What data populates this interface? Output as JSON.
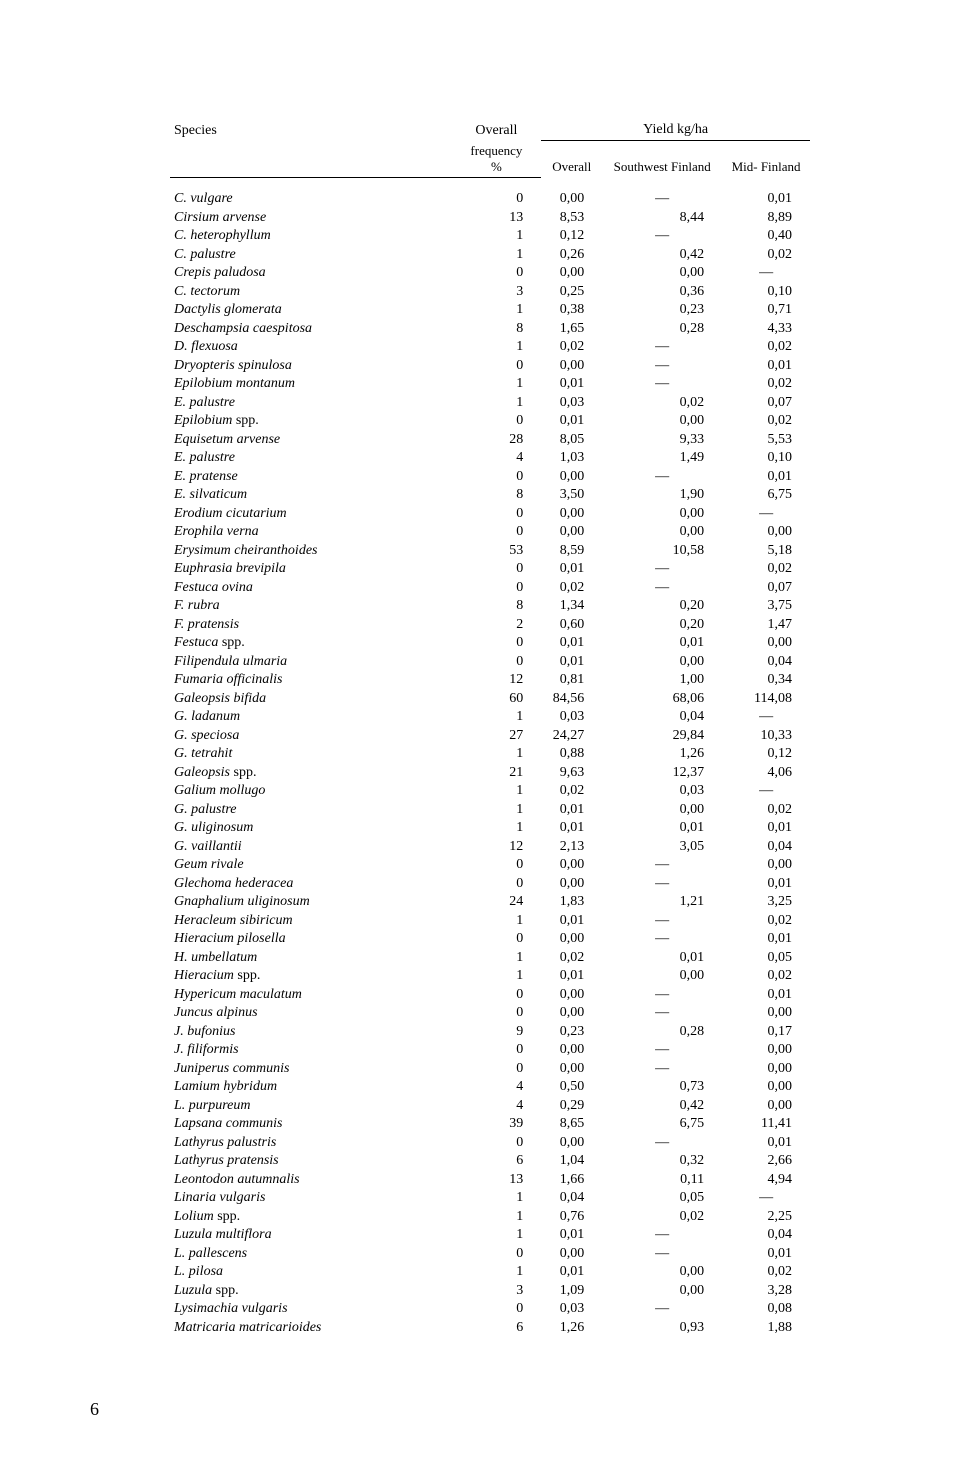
{
  "headers": {
    "species": "Species",
    "overall_freq": "Overall",
    "frequency": "frequency",
    "freq_unit": "%",
    "yield": "Yield kg/ha",
    "overall": "Overall",
    "southwest": "Southwest Finland",
    "mid": "Mid- Finland"
  },
  "page_number": "6",
  "rows": [
    {
      "sp": "C. vulgare",
      "freq": "0",
      "ov": "0,00",
      "sw": "—",
      "mid": "0,01"
    },
    {
      "sp": "Cirsium arvense",
      "freq": "13",
      "ov": "8,53",
      "sw": "8,44",
      "mid": "8,89"
    },
    {
      "sp": "C. heterophyllum",
      "freq": "1",
      "ov": "0,12",
      "sw": "—",
      "mid": "0,40"
    },
    {
      "sp": "C. palustre",
      "freq": "1",
      "ov": "0,26",
      "sw": "0,42",
      "mid": "0,02"
    },
    {
      "sp": "Crepis paludosa",
      "freq": "0",
      "ov": "0,00",
      "sw": "0,00",
      "mid": "—"
    },
    {
      "sp": "C. tectorum",
      "freq": "3",
      "ov": "0,25",
      "sw": "0,36",
      "mid": "0,10"
    },
    {
      "sp": "Dactylis glomerata",
      "freq": "1",
      "ov": "0,38",
      "sw": "0,23",
      "mid": "0,71"
    },
    {
      "sp": "Deschampsia caespitosa",
      "freq": "8",
      "ov": "1,65",
      "sw": "0,28",
      "mid": "4,33"
    },
    {
      "sp": "D. flexuosa",
      "freq": "1",
      "ov": "0,02",
      "sw": "—",
      "mid": "0,02"
    },
    {
      "sp": "Dryopteris spinulosa",
      "freq": "0",
      "ov": "0,00",
      "sw": "—",
      "mid": "0,01"
    },
    {
      "sp": "Epilobium montanum",
      "freq": "1",
      "ov": "0,01",
      "sw": "—",
      "mid": "0,02"
    },
    {
      "sp": "E. palustre",
      "freq": "1",
      "ov": "0,03",
      "sw": "0,02",
      "mid": "0,07"
    },
    {
      "sp": "Epilobium",
      "spp": " spp.",
      "freq": "0",
      "ov": "0,01",
      "sw": "0,00",
      "mid": "0,02"
    },
    {
      "sp": "Equisetum arvense",
      "freq": "28",
      "ov": "8,05",
      "sw": "9,33",
      "mid": "5,53"
    },
    {
      "sp": "E. palustre",
      "freq": "4",
      "ov": "1,03",
      "sw": "1,49",
      "mid": "0,10"
    },
    {
      "sp": "E. pratense",
      "freq": "0",
      "ov": "0,00",
      "sw": "—",
      "mid": "0,01"
    },
    {
      "sp": "E. silvaticum",
      "freq": "8",
      "ov": "3,50",
      "sw": "1,90",
      "mid": "6,75"
    },
    {
      "sp": "Erodium cicutarium",
      "freq": "0",
      "ov": "0,00",
      "sw": "0,00",
      "mid": "—"
    },
    {
      "sp": "Erophila verna",
      "freq": "0",
      "ov": "0,00",
      "sw": "0,00",
      "mid": "0,00"
    },
    {
      "sp": "Erysimum cheiranthoides",
      "freq": "53",
      "ov": "8,59",
      "sw": "10,58",
      "mid": "5,18"
    },
    {
      "sp": "Euphrasia brevipila",
      "freq": "0",
      "ov": "0,01",
      "sw": "—",
      "mid": "0,02"
    },
    {
      "sp": "Festuca ovina",
      "freq": "0",
      "ov": "0,02",
      "sw": "—",
      "mid": "0,07"
    },
    {
      "sp": "F. rubra",
      "freq": "8",
      "ov": "1,34",
      "sw": "0,20",
      "mid": "3,75"
    },
    {
      "sp": "F. pratensis",
      "freq": "2",
      "ov": "0,60",
      "sw": "0,20",
      "mid": "1,47"
    },
    {
      "sp": "Festuca",
      "spp": " spp.",
      "freq": "0",
      "ov": "0,01",
      "sw": "0,01",
      "mid": "0,00"
    },
    {
      "sp": "Filipendula ulmaria",
      "freq": "0",
      "ov": "0,01",
      "sw": "0,00",
      "mid": "0,04"
    },
    {
      "sp": "Fumaria officinalis",
      "freq": "12",
      "ov": "0,81",
      "sw": "1,00",
      "mid": "0,34"
    },
    {
      "sp": "Galeopsis bifida",
      "freq": "60",
      "ov": "84,56",
      "sw": "68,06",
      "mid": "114,08"
    },
    {
      "sp": "G. ladanum",
      "freq": "1",
      "ov": "0,03",
      "sw": "0,04",
      "mid": "—"
    },
    {
      "sp": "G. speciosa",
      "freq": "27",
      "ov": "24,27",
      "sw": "29,84",
      "mid": "10,33"
    },
    {
      "sp": "G. tetrahit",
      "freq": "1",
      "ov": "0,88",
      "sw": "1,26",
      "mid": "0,12"
    },
    {
      "sp": "Galeopsis",
      "spp": " spp.",
      "freq": "21",
      "ov": "9,63",
      "sw": "12,37",
      "mid": "4,06"
    },
    {
      "sp": "Galium mollugo",
      "freq": "1",
      "ov": "0,02",
      "sw": "0,03",
      "mid": "—"
    },
    {
      "sp": "G. palustre",
      "freq": "1",
      "ov": "0,01",
      "sw": "0,00",
      "mid": "0,02"
    },
    {
      "sp": "G. uliginosum",
      "freq": "1",
      "ov": "0,01",
      "sw": "0,01",
      "mid": "0,01"
    },
    {
      "sp": "G. vaillantii",
      "freq": "12",
      "ov": "2,13",
      "sw": "3,05",
      "mid": "0,04"
    },
    {
      "sp": "Geum rivale",
      "freq": "0",
      "ov": "0,00",
      "sw": "—",
      "mid": "0,00"
    },
    {
      "sp": "Glechoma hederacea",
      "freq": "0",
      "ov": "0,00",
      "sw": "—",
      "mid": "0,01"
    },
    {
      "sp": "Gnaphalium uliginosum",
      "freq": "24",
      "ov": "1,83",
      "sw": "1,21",
      "mid": "3,25"
    },
    {
      "sp": "Heracleum sibiricum",
      "freq": "1",
      "ov": "0,01",
      "sw": "—",
      "mid": "0,02"
    },
    {
      "sp": "Hieracium pilosella",
      "freq": "0",
      "ov": "0,00",
      "sw": "—",
      "mid": "0,01"
    },
    {
      "sp": "H. umbellatum",
      "freq": "1",
      "ov": "0,02",
      "sw": "0,01",
      "mid": "0,05"
    },
    {
      "sp": "Hieracium",
      "spp": " spp.",
      "freq": "1",
      "ov": "0,01",
      "sw": "0,00",
      "mid": "0,02"
    },
    {
      "sp": "Hypericum maculatum",
      "freq": "0",
      "ov": "0,00",
      "sw": "—",
      "mid": "0,01"
    },
    {
      "sp": "Juncus alpinus",
      "freq": "0",
      "ov": "0,00",
      "sw": "—",
      "mid": "0,00"
    },
    {
      "sp": "J. bufonius",
      "freq": "9",
      "ov": "0,23",
      "sw": "0,28",
      "mid": "0,17"
    },
    {
      "sp": "J. filiformis",
      "freq": "0",
      "ov": "0,00",
      "sw": "—",
      "mid": "0,00"
    },
    {
      "sp": "Juniperus communis",
      "freq": "0",
      "ov": "0,00",
      "sw": "—",
      "mid": "0,00"
    },
    {
      "sp": "Lamium hybridum",
      "freq": "4",
      "ov": "0,50",
      "sw": "0,73",
      "mid": "0,00"
    },
    {
      "sp": "L. purpureum",
      "freq": "4",
      "ov": "0,29",
      "sw": "0,42",
      "mid": "0,00"
    },
    {
      "sp": "Lapsana communis",
      "freq": "39",
      "ov": "8,65",
      "sw": "6,75",
      "mid": "11,41"
    },
    {
      "sp": "Lathyrus palustris",
      "freq": "0",
      "ov": "0,00",
      "sw": "—",
      "mid": "0,01"
    },
    {
      "sp": "Lathyrus pratensis",
      "freq": "6",
      "ov": "1,04",
      "sw": "0,32",
      "mid": "2,66"
    },
    {
      "sp": "Leontodon autumnalis",
      "freq": "13",
      "ov": "1,66",
      "sw": "0,11",
      "mid": "4,94"
    },
    {
      "sp": "Linaria vulgaris",
      "freq": "1",
      "ov": "0,04",
      "sw": "0,05",
      "mid": "—"
    },
    {
      "sp": "Lolium",
      "spp": " spp.",
      "freq": "1",
      "ov": "0,76",
      "sw": "0,02",
      "mid": "2,25"
    },
    {
      "sp": "Luzula multiflora",
      "freq": "1",
      "ov": "0,01",
      "sw": "—",
      "mid": "0,04"
    },
    {
      "sp": "L. pallescens",
      "freq": "0",
      "ov": "0,00",
      "sw": "—",
      "mid": "0,01"
    },
    {
      "sp": "L. pilosa",
      "freq": "1",
      "ov": "0,01",
      "sw": "0,00",
      "mid": "0,02"
    },
    {
      "sp": "Luzula",
      "spp": " spp.",
      "freq": "3",
      "ov": "1,09",
      "sw": "0,00",
      "mid": "3,28"
    },
    {
      "sp": "Lysimachia vulgaris",
      "freq": "0",
      "ov": "0,03",
      "sw": "—",
      "mid": "0,08"
    },
    {
      "sp": "Matricaria matricarioides",
      "freq": "6",
      "ov": "1,26",
      "sw": "0,93",
      "mid": "1,88"
    }
  ]
}
